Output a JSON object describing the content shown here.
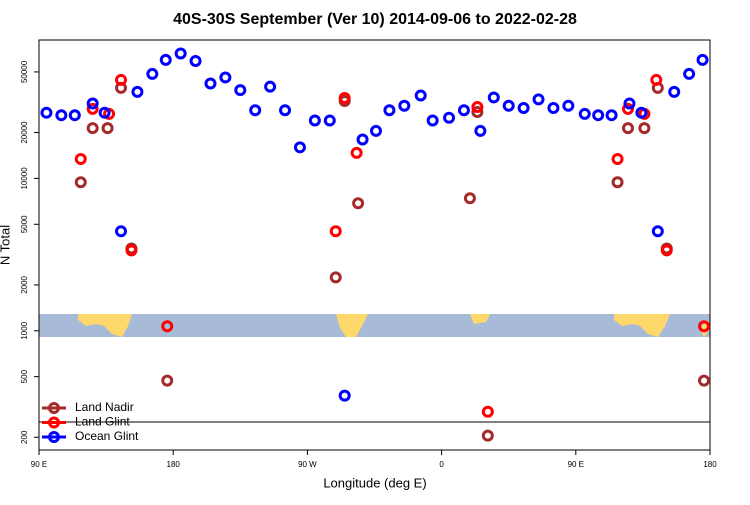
{
  "chart_data": {
    "type": "scatter",
    "title": "40S-30S September (Ver 10)   2014-09-06 to 2022-02-28",
    "x_label": "Longitude (deg E)",
    "y_label": "N Total",
    "xlim": [
      90,
      540
    ],
    "xticks": [
      {
        "value": 90,
        "label": "90 E"
      },
      {
        "value": 180,
        "label": "180"
      },
      {
        "value": 270,
        "label": "90 W"
      },
      {
        "value": 360,
        "label": "0"
      },
      {
        "value": 450,
        "label": "90 E"
      },
      {
        "value": 540,
        "label": "180"
      }
    ],
    "ylim": [
      165,
      81000
    ],
    "yscale": "log",
    "yticks": [
      200,
      500,
      1000,
      2000,
      5000,
      10000,
      20000,
      50000
    ],
    "legend": "lower left",
    "series": [
      {
        "name": "Land Nadir",
        "color": "#a52a2a",
        "x": [
          118,
          126,
          136,
          145,
          152,
          176,
          289,
          295,
          304,
          379,
          384,
          391,
          478,
          485,
          496,
          505,
          511,
          536
        ],
        "values": [
          9440,
          21400,
          21400,
          39300,
          3470,
          471,
          2240,
          32200,
          6870,
          7410,
          27300,
          205,
          9440,
          21400,
          21400,
          39300,
          3470,
          471
        ]
      },
      {
        "name": "Land Glint",
        "color": "#ff0000",
        "x": [
          118,
          126,
          137,
          145,
          152,
          176,
          289,
          295,
          303,
          384,
          391,
          478,
          485,
          496,
          504,
          511,
          536
        ],
        "values": [
          13400,
          28600,
          26500,
          44300,
          3370,
          1070,
          4500,
          33700,
          14700,
          29400,
          294,
          13400,
          28600,
          26500,
          44300,
          3370,
          1070
        ]
      },
      {
        "name": "Ocean Glint",
        "color": "#0000ff",
        "x": [
          95,
          105,
          114,
          126,
          134,
          145,
          156,
          166,
          175,
          185,
          195,
          205,
          215,
          225,
          235,
          245,
          255,
          265,
          275,
          285,
          295,
          307,
          316,
          325,
          335,
          346,
          354,
          365,
          375,
          386,
          395,
          405,
          415,
          425,
          435,
          445,
          456,
          465,
          474,
          486,
          494,
          505,
          516,
          526,
          535
        ],
        "values": [
          27000,
          26000,
          26000,
          31000,
          27000,
          4500,
          37000,
          48500,
          60000,
          66000,
          59000,
          42000,
          46000,
          38000,
          28000,
          40000,
          28000,
          16000,
          24000,
          24000,
          375,
          18000,
          20500,
          28000,
          30000,
          35000,
          24000,
          25000,
          28000,
          20500,
          34000,
          30000,
          29000,
          33000,
          29000,
          30000,
          26500,
          26000,
          26000,
          31000,
          27000,
          4500,
          37000,
          48500,
          60000
        ]
      }
    ]
  }
}
